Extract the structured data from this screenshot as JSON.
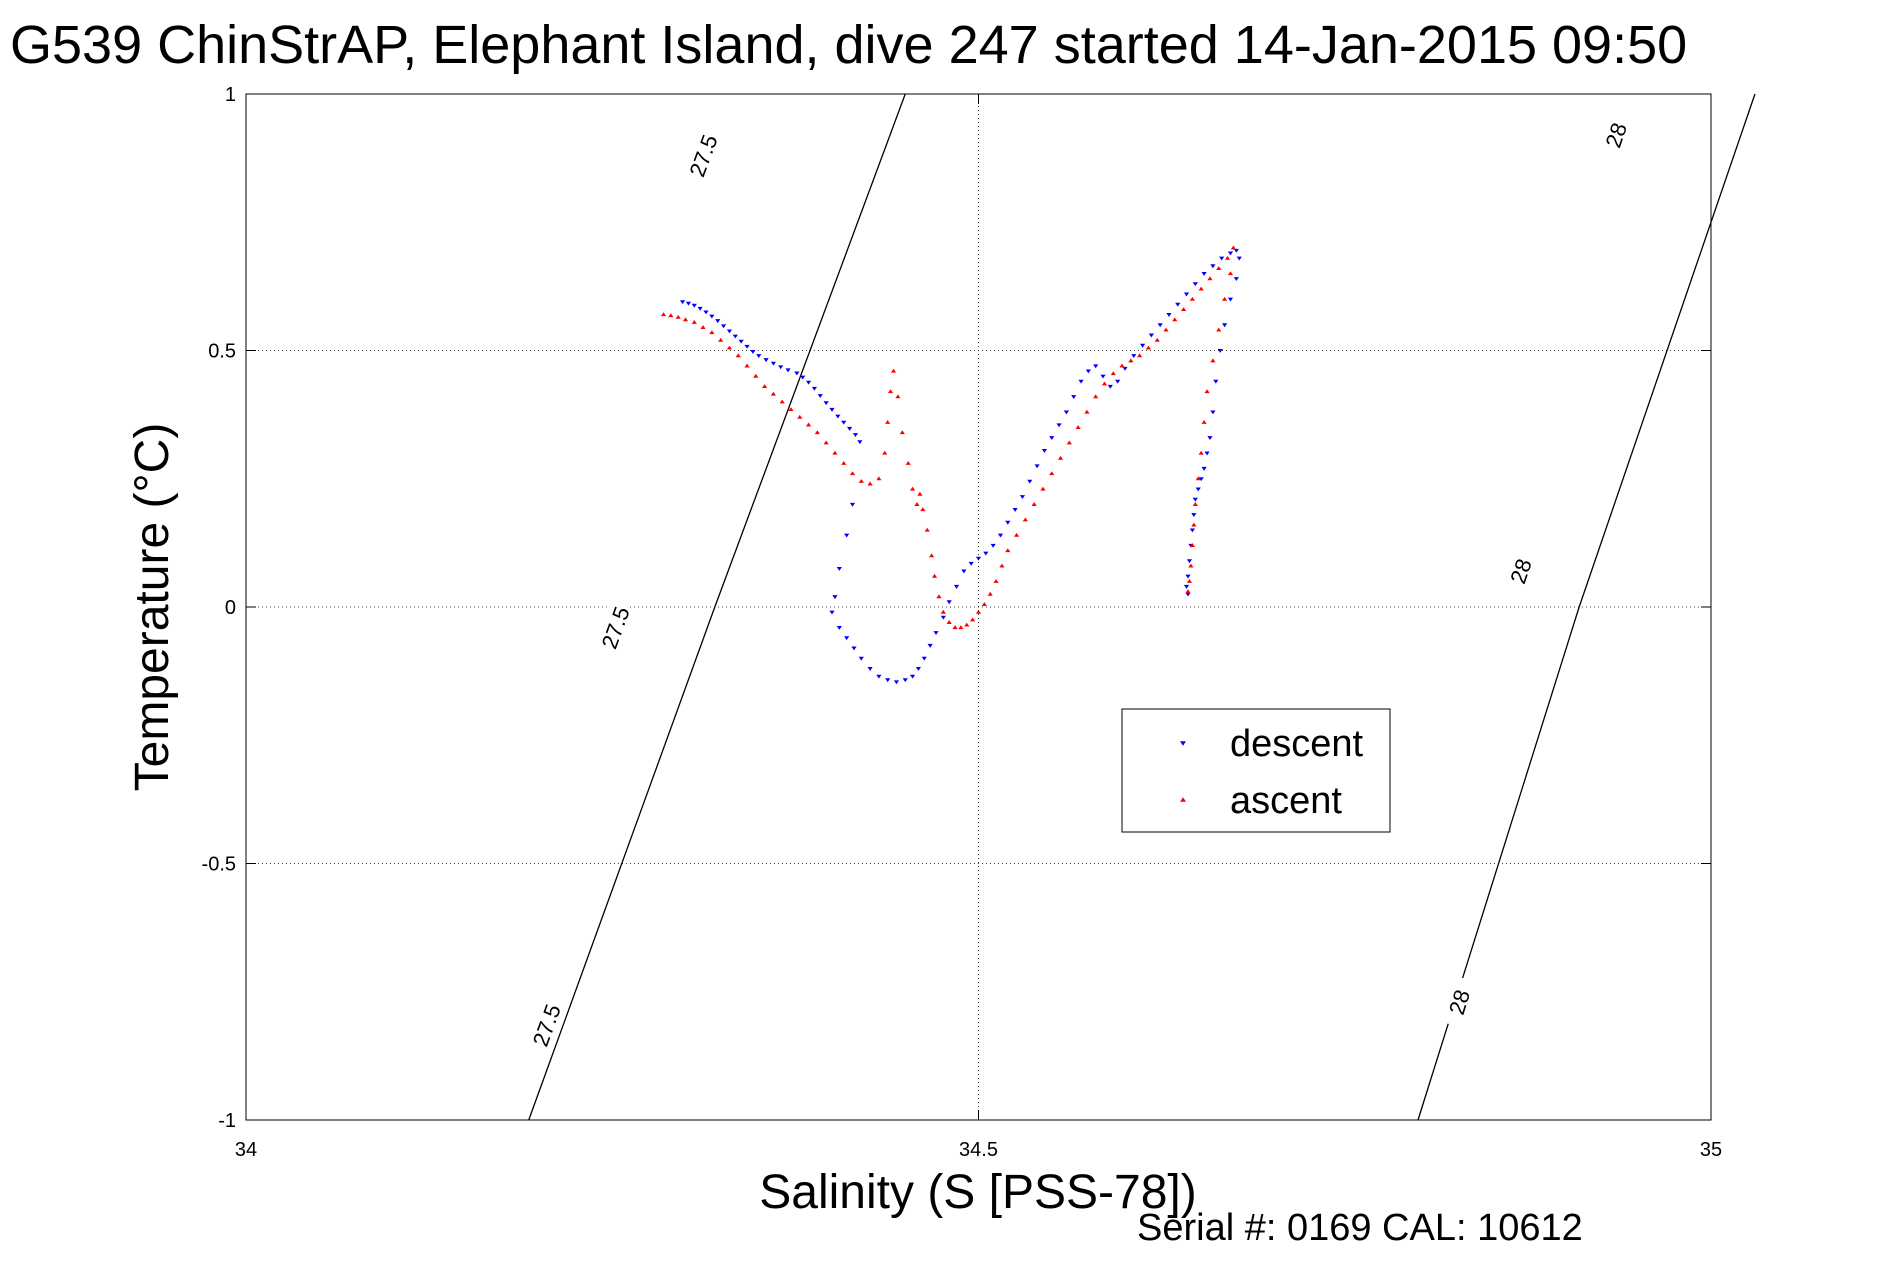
{
  "chart_data": {
    "type": "scatter",
    "title": "G539 ChinStrAP, Elephant Island, dive 247 started 14-Jan-2015 09:50",
    "xlabel": "Salinity (S [PSS-78])",
    "ylabel": "Temperature (°C)",
    "xlim": [
      34,
      35
    ],
    "ylim": [
      -1,
      1
    ],
    "x_ticks": [
      34,
      34.5,
      35
    ],
    "x_tick_labels": [
      "34",
      "34.5",
      "35"
    ],
    "y_ticks": [
      -1,
      -0.5,
      0,
      0.5,
      1
    ],
    "y_tick_labels": [
      "-1",
      "-0.5",
      "0",
      "0.5",
      "1"
    ],
    "grid": true,
    "legend_position": "right-center",
    "footer": "Serial #: 0169 CAL: 10612",
    "contours": [
      {
        "label": "27.5",
        "points": [
          [
            34.193,
            -1
          ],
          [
            34.32,
            0
          ],
          [
            34.45,
            1
          ]
        ],
        "label_positions": [
          [
            34.205,
            -0.815
          ],
          [
            34.252,
            -0.04
          ],
          [
            34.312,
            0.88
          ]
        ]
      },
      {
        "label": "28",
        "points": [
          [
            34.8,
            -1
          ],
          [
            34.91,
            0
          ],
          [
            35.03,
            1
          ]
        ],
        "label_positions": [
          [
            34.828,
            -0.77
          ],
          [
            34.87,
            0.07
          ],
          [
            34.935,
            0.92
          ]
        ]
      }
    ],
    "series": [
      {
        "name": "descent",
        "color": "#0000ff",
        "marker": "triangle-down",
        "points": [
          [
            34.298,
            0.595
          ],
          [
            34.302,
            0.592
          ],
          [
            34.306,
            0.588
          ],
          [
            34.31,
            0.582
          ],
          [
            34.314,
            0.575
          ],
          [
            34.318,
            0.567
          ],
          [
            34.322,
            0.558
          ],
          [
            34.326,
            0.548
          ],
          [
            34.33,
            0.538
          ],
          [
            34.334,
            0.528
          ],
          [
            34.338,
            0.518
          ],
          [
            34.342,
            0.508
          ],
          [
            34.346,
            0.498
          ],
          [
            34.35,
            0.49
          ],
          [
            34.355,
            0.482
          ],
          [
            34.36,
            0.475
          ],
          [
            34.365,
            0.468
          ],
          [
            34.37,
            0.462
          ],
          [
            34.376,
            0.456
          ],
          [
            34.38,
            0.448
          ],
          [
            34.384,
            0.438
          ],
          [
            34.388,
            0.426
          ],
          [
            34.392,
            0.412
          ],
          [
            34.396,
            0.398
          ],
          [
            34.4,
            0.385
          ],
          [
            34.404,
            0.372
          ],
          [
            34.408,
            0.36
          ],
          [
            34.412,
            0.348
          ],
          [
            34.416,
            0.336
          ],
          [
            34.419,
            0.322
          ],
          [
            34.414,
            0.2
          ],
          [
            34.41,
            0.14
          ],
          [
            34.405,
            0.075
          ],
          [
            34.402,
            0.02
          ],
          [
            34.4,
            -0.01
          ],
          [
            34.405,
            -0.04
          ],
          [
            34.41,
            -0.06
          ],
          [
            34.415,
            -0.08
          ],
          [
            34.42,
            -0.1
          ],
          [
            34.426,
            -0.12
          ],
          [
            34.432,
            -0.135
          ],
          [
            34.438,
            -0.142
          ],
          [
            34.444,
            -0.146
          ],
          [
            34.45,
            -0.142
          ],
          [
            34.455,
            -0.135
          ],
          [
            34.459,
            -0.12
          ],
          [
            34.463,
            -0.1
          ],
          [
            34.467,
            -0.075
          ],
          [
            34.471,
            -0.05
          ],
          [
            34.476,
            -0.02
          ],
          [
            34.48,
            0.01
          ],
          [
            34.485,
            0.04
          ],
          [
            34.49,
            0.07
          ],
          [
            34.495,
            0.085
          ],
          [
            34.5,
            0.095
          ],
          [
            34.505,
            0.105
          ],
          [
            34.51,
            0.12
          ],
          [
            34.515,
            0.14
          ],
          [
            34.52,
            0.165
          ],
          [
            34.525,
            0.19
          ],
          [
            34.53,
            0.215
          ],
          [
            34.535,
            0.245
          ],
          [
            34.54,
            0.275
          ],
          [
            34.545,
            0.305
          ],
          [
            34.55,
            0.33
          ],
          [
            34.555,
            0.355
          ],
          [
            34.56,
            0.38
          ],
          [
            34.565,
            0.41
          ],
          [
            34.57,
            0.44
          ],
          [
            34.575,
            0.46
          ],
          [
            34.58,
            0.47
          ],
          [
            34.585,
            0.45
          ],
          [
            34.59,
            0.43
          ],
          [
            34.595,
            0.44
          ],
          [
            34.6,
            0.465
          ],
          [
            34.606,
            0.49
          ],
          [
            34.612,
            0.51
          ],
          [
            34.618,
            0.53
          ],
          [
            34.624,
            0.55
          ],
          [
            34.63,
            0.57
          ],
          [
            34.636,
            0.59
          ],
          [
            34.642,
            0.61
          ],
          [
            34.648,
            0.63
          ],
          [
            34.654,
            0.65
          ],
          [
            34.66,
            0.665
          ],
          [
            34.666,
            0.68
          ],
          [
            34.672,
            0.69
          ],
          [
            34.676,
            0.695
          ],
          [
            34.678,
            0.68
          ],
          [
            34.676,
            0.64
          ],
          [
            34.672,
            0.6
          ],
          [
            34.668,
            0.55
          ],
          [
            34.665,
            0.5
          ],
          [
            34.662,
            0.44
          ],
          [
            34.66,
            0.38
          ],
          [
            34.658,
            0.33
          ],
          [
            34.656,
            0.3
          ],
          [
            34.654,
            0.27
          ],
          [
            34.652,
            0.25
          ],
          [
            34.65,
            0.23
          ],
          [
            34.648,
            0.21
          ],
          [
            34.647,
            0.18
          ],
          [
            34.646,
            0.15
          ],
          [
            34.645,
            0.12
          ],
          [
            34.644,
            0.09
          ],
          [
            34.643,
            0.06
          ],
          [
            34.642,
            0.04
          ],
          [
            34.643,
            0.025
          ]
        ]
      },
      {
        "name": "ascent",
        "color": "#ff0000",
        "marker": "triangle-up",
        "points": [
          [
            34.285,
            0.57
          ],
          [
            34.29,
            0.568
          ],
          [
            34.295,
            0.565
          ],
          [
            34.3,
            0.56
          ],
          [
            34.306,
            0.555
          ],
          [
            34.312,
            0.545
          ],
          [
            34.318,
            0.535
          ],
          [
            34.324,
            0.52
          ],
          [
            34.33,
            0.505
          ],
          [
            34.336,
            0.49
          ],
          [
            34.342,
            0.47
          ],
          [
            34.348,
            0.45
          ],
          [
            34.354,
            0.43
          ],
          [
            34.36,
            0.415
          ],
          [
            34.366,
            0.4
          ],
          [
            34.372,
            0.385
          ],
          [
            34.378,
            0.37
          ],
          [
            34.384,
            0.355
          ],
          [
            34.39,
            0.34
          ],
          [
            34.396,
            0.32
          ],
          [
            34.402,
            0.3
          ],
          [
            34.408,
            0.28
          ],
          [
            34.414,
            0.26
          ],
          [
            34.42,
            0.245
          ],
          [
            34.426,
            0.24
          ],
          [
            34.432,
            0.25
          ],
          [
            34.436,
            0.3
          ],
          [
            34.438,
            0.36
          ],
          [
            34.44,
            0.42
          ],
          [
            34.442,
            0.46
          ],
          [
            34.445,
            0.41
          ],
          [
            34.448,
            0.34
          ],
          [
            34.452,
            0.28
          ],
          [
            34.455,
            0.23
          ],
          [
            34.458,
            0.2
          ],
          [
            34.46,
            0.22
          ],
          [
            34.462,
            0.19
          ],
          [
            34.465,
            0.15
          ],
          [
            34.468,
            0.1
          ],
          [
            34.47,
            0.06
          ],
          [
            34.473,
            0.02
          ],
          [
            34.476,
            -0.01
          ],
          [
            34.48,
            -0.03
          ],
          [
            34.484,
            -0.04
          ],
          [
            34.488,
            -0.04
          ],
          [
            34.492,
            -0.035
          ],
          [
            34.496,
            -0.025
          ],
          [
            34.5,
            -0.01
          ],
          [
            34.504,
            0.005
          ],
          [
            34.508,
            0.025
          ],
          [
            34.512,
            0.05
          ],
          [
            34.516,
            0.08
          ],
          [
            34.52,
            0.11
          ],
          [
            34.526,
            0.14
          ],
          [
            34.532,
            0.17
          ],
          [
            34.538,
            0.2
          ],
          [
            34.544,
            0.23
          ],
          [
            34.55,
            0.26
          ],
          [
            34.556,
            0.29
          ],
          [
            34.562,
            0.32
          ],
          [
            34.568,
            0.35
          ],
          [
            34.574,
            0.38
          ],
          [
            34.58,
            0.41
          ],
          [
            34.586,
            0.435
          ],
          [
            34.592,
            0.455
          ],
          [
            34.598,
            0.47
          ],
          [
            34.604,
            0.48
          ],
          [
            34.61,
            0.49
          ],
          [
            34.616,
            0.505
          ],
          [
            34.622,
            0.52
          ],
          [
            34.628,
            0.54
          ],
          [
            34.634,
            0.56
          ],
          [
            34.64,
            0.58
          ],
          [
            34.646,
            0.6
          ],
          [
            34.652,
            0.62
          ],
          [
            34.658,
            0.64
          ],
          [
            34.664,
            0.66
          ],
          [
            34.67,
            0.68
          ],
          [
            34.674,
            0.7
          ],
          [
            34.672,
            0.65
          ],
          [
            34.668,
            0.6
          ],
          [
            34.664,
            0.54
          ],
          [
            34.66,
            0.48
          ],
          [
            34.656,
            0.42
          ],
          [
            34.654,
            0.36
          ],
          [
            34.652,
            0.3
          ],
          [
            34.65,
            0.25
          ],
          [
            34.648,
            0.2
          ],
          [
            34.647,
            0.16
          ],
          [
            34.646,
            0.12
          ],
          [
            34.645,
            0.08
          ],
          [
            34.644,
            0.05
          ],
          [
            34.643,
            0.03
          ]
        ]
      }
    ]
  }
}
